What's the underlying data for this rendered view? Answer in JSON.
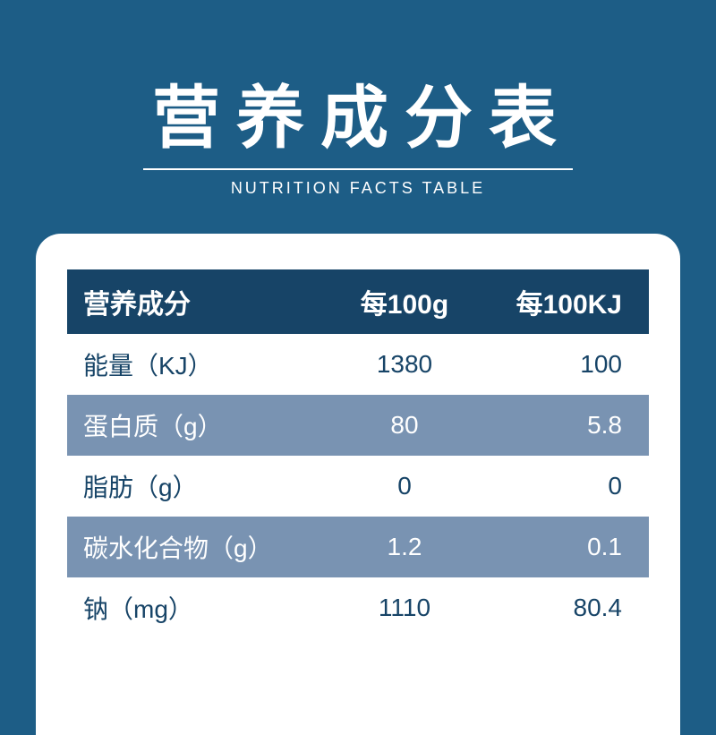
{
  "header": {
    "title_cn": "营养成分表",
    "title_en": "NUTRITION FACTS TABLE"
  },
  "table": {
    "columns": [
      "营养成分",
      "每100g",
      "每100KJ"
    ],
    "rows": [
      {
        "label": "能量（KJ）",
        "per100g": "1380",
        "per100kj": "100",
        "stripe": false
      },
      {
        "label": "蛋白质（g）",
        "per100g": "80",
        "per100kj": "5.8",
        "stripe": true
      },
      {
        "label": "脂肪（g）",
        "per100g": "0",
        "per100kj": "0",
        "stripe": false
      },
      {
        "label": "碳水化合物（g）",
        "per100g": "1.2",
        "per100kj": "0.1",
        "stripe": true
      },
      {
        "label": "钠（mg）",
        "per100g": "1110",
        "per100kj": "80.4",
        "stripe": false
      }
    ],
    "colors": {
      "page_bg": "#1d5d86",
      "card_bg": "#ffffff",
      "header_row_bg": "#174467",
      "stripe_bg": "#7993b2",
      "text_dark": "#174467",
      "text_light": "#ffffff"
    },
    "typography": {
      "title_cn_fontsize": 76,
      "title_en_fontsize": 18,
      "th_fontsize": 30,
      "td_fontsize": 28
    },
    "layout": {
      "card_radius": 28,
      "col_widths_pct": [
        44,
        28,
        28
      ]
    }
  }
}
